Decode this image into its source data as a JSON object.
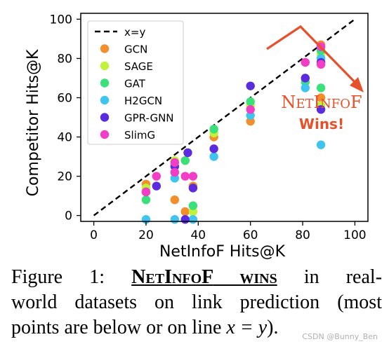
{
  "chart_data": {
    "type": "scatter",
    "xlabel": "NetInfoF Hits@K",
    "ylabel": "Competitor Hits@K",
    "xlim": [
      -5,
      105
    ],
    "ylim": [
      -3,
      103
    ],
    "xticks": [
      0,
      20,
      40,
      60,
      80,
      100
    ],
    "yticks": [
      0,
      20,
      40,
      60,
      80,
      100
    ],
    "grid": false,
    "legend_position": "upper-left",
    "reference_line": {
      "label": "x=y",
      "style": "dashed",
      "color": "#000000"
    },
    "series": [
      {
        "name": "GCN",
        "color": "#f28e2b",
        "points": [
          [
            20,
            16
          ],
          [
            31,
            8
          ],
          [
            35,
            2
          ],
          [
            35,
            28
          ],
          [
            38,
            15
          ],
          [
            46,
            40
          ],
          [
            60,
            48
          ],
          [
            81,
            78
          ],
          [
            87,
            60
          ],
          [
            87,
            87
          ]
        ]
      },
      {
        "name": "SAGE",
        "color": "#bff23a",
        "points": [
          [
            20,
            14
          ],
          [
            31,
            28
          ],
          [
            36,
            32
          ],
          [
            38,
            2
          ],
          [
            46,
            42
          ],
          [
            60,
            56
          ],
          [
            81,
            70
          ],
          [
            87,
            56
          ],
          [
            87,
            82
          ]
        ]
      },
      {
        "name": "GAT",
        "color": "#3ae07a",
        "points": [
          [
            20,
            8
          ],
          [
            31,
            22
          ],
          [
            35,
            28
          ],
          [
            38,
            5
          ],
          [
            46,
            44
          ],
          [
            60,
            58
          ],
          [
            81,
            68
          ],
          [
            87,
            65
          ],
          [
            87,
            84
          ]
        ]
      },
      {
        "name": "H2GCN",
        "color": "#3ec4ee",
        "points": [
          [
            20,
            -2
          ],
          [
            31,
            -2
          ],
          [
            31,
            19
          ],
          [
            38,
            -2
          ],
          [
            46,
            30
          ],
          [
            60,
            51
          ],
          [
            81,
            65
          ],
          [
            87,
            36
          ],
          [
            87,
            80
          ]
        ]
      },
      {
        "name": "GPR-GNN",
        "color": "#5b2be0",
        "points": [
          [
            20,
            12
          ],
          [
            24,
            15
          ],
          [
            31,
            25
          ],
          [
            35,
            -2
          ],
          [
            36,
            32
          ],
          [
            38,
            14
          ],
          [
            46,
            34
          ],
          [
            60,
            66
          ],
          [
            81,
            70
          ],
          [
            87,
            54
          ],
          [
            87,
            78
          ]
        ]
      },
      {
        "name": "SlimG",
        "color": "#f23ec6",
        "points": [
          [
            20,
            12
          ],
          [
            24,
            20
          ],
          [
            31,
            27
          ],
          [
            31,
            22
          ],
          [
            35,
            20
          ],
          [
            38,
            20
          ],
          [
            60,
            54
          ],
          [
            81,
            78
          ],
          [
            87,
            77
          ],
          [
            87,
            86
          ]
        ]
      }
    ],
    "annotation": {
      "line1": "NetInfoF",
      "line2": "Wins!",
      "color": "#e8502a"
    }
  },
  "caption": {
    "figure_label": "Figure 1:",
    "name": "NetInfoF",
    "rest_line1": "wins in real-",
    "line2": "world datasets on link prediction (most",
    "line3_prefix": "points are below or on line ",
    "math": "x = y",
    "line3_suffix": ")."
  },
  "watermark": "CSDN @Bunny_Ben"
}
